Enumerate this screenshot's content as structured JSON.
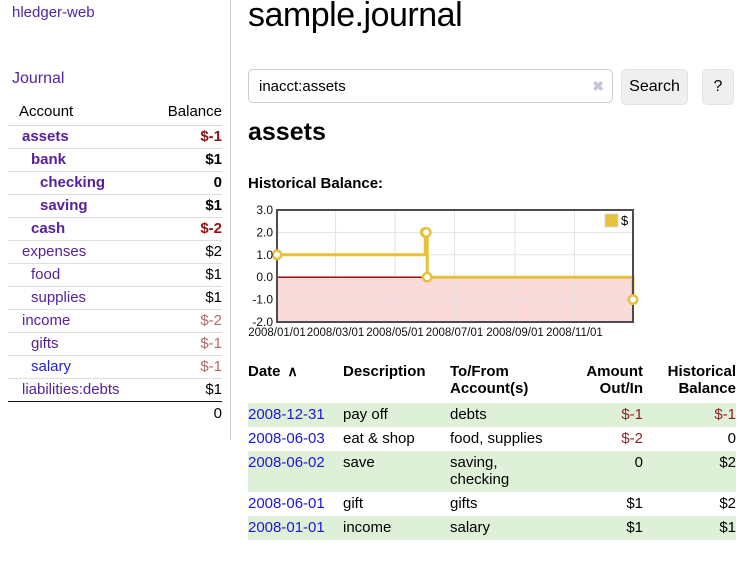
{
  "app": {
    "brand": "hledger-web",
    "nav_journal": "Journal"
  },
  "colors": {
    "accent_purple": "#56219b",
    "link_blue": "#2222dd",
    "date_link_blue": "#1b16dd",
    "negative_strong": "#8e1414",
    "negative_soft": "#b36a6a",
    "row_green": "#dff0d8",
    "chart_gold": "#e8c13c"
  },
  "sidebar": {
    "headers": {
      "account": "Account",
      "balance": "Balance"
    },
    "accounts": [
      {
        "account": "assets",
        "balance": "$-1",
        "level": 1,
        "bold": true,
        "tone": "neg-strong",
        "link": "purple"
      },
      {
        "account": "bank",
        "balance": "$1",
        "level": 2,
        "bold": true,
        "tone": "pos",
        "link": "purple"
      },
      {
        "account": "checking",
        "balance": "0",
        "level": 3,
        "bold": true,
        "tone": "pos",
        "link": "purple"
      },
      {
        "account": "saving",
        "balance": "$1",
        "level": 3,
        "bold": true,
        "tone": "pos",
        "link": "purple"
      },
      {
        "account": "cash",
        "balance": "$-2",
        "level": 2,
        "bold": true,
        "tone": "neg-strong",
        "link": "purple"
      },
      {
        "account": "expenses",
        "balance": "$2",
        "level": 1,
        "bold": false,
        "tone": "pos",
        "link": "purple"
      },
      {
        "account": "food",
        "balance": "$1",
        "level": 2,
        "bold": false,
        "tone": "pos",
        "link": "purple"
      },
      {
        "account": "supplies",
        "balance": "$1",
        "level": 2,
        "bold": false,
        "tone": "pos",
        "link": "purple"
      },
      {
        "account": "income",
        "balance": "$-2",
        "level": 1,
        "bold": false,
        "tone": "neg-soft",
        "link": "purple"
      },
      {
        "account": "gifts",
        "balance": "$-1",
        "level": 2,
        "bold": false,
        "tone": "neg-soft",
        "link": "purple"
      },
      {
        "account": "salary",
        "balance": "$-1",
        "level": 2,
        "bold": false,
        "tone": "neg-soft",
        "link": "blue"
      },
      {
        "account": "liabilities:debts",
        "balance": "$1",
        "level": 1,
        "bold": false,
        "tone": "pos",
        "link": "purple",
        "last": true
      }
    ],
    "total": "0"
  },
  "header": {
    "title": "sample.journal"
  },
  "search": {
    "value": "inacct:assets",
    "clear_icon": "✖",
    "button_label": "Search",
    "help_label": "?"
  },
  "main": {
    "heading": "assets",
    "chart_section_label": "Historical Balance:"
  },
  "chart_data": {
    "type": "line",
    "step": true,
    "title": "Historical Balance:",
    "legend_label": "$",
    "legend_position": "top-right",
    "grid": true,
    "x_range": [
      "2008/01/01",
      "2008/12/31"
    ],
    "ylim": [
      -2,
      3
    ],
    "y_ticks": [
      3.0,
      2.0,
      1.0,
      0.0,
      -1.0,
      -2.0
    ],
    "x_ticks": [
      "2008/01/01",
      "2008/03/01",
      "2008/05/01",
      "2008/07/01",
      "2008/09/01",
      "2008/11/01"
    ],
    "series": [
      {
        "name": "$",
        "color": "#e8c13c",
        "points": [
          {
            "x": "2008/01/01",
            "y": 1
          },
          {
            "x": "2008/06/01",
            "y": 2
          },
          {
            "x": "2008/06/02",
            "y": 2
          },
          {
            "x": "2008/06/03",
            "y": 0
          },
          {
            "x": "2008/12/31",
            "y": -1
          }
        ]
      }
    ],
    "negative_fill": "#fbdada",
    "zero_line_color": "#8b0000",
    "grid_color": "#e3e3e3",
    "border_color": "#4d4d4d"
  },
  "register": {
    "headers": {
      "date": "Date",
      "description": "Description",
      "accounts": "To/From\nAccount(s)",
      "amount": "Amount\nOut/In",
      "balance": "Historical\nBalance"
    },
    "sort_icon": "∧",
    "rows": [
      {
        "date": "2008-12-31",
        "description": "pay off",
        "accounts": "debts",
        "amount": "$-1",
        "balance": "$-1"
      },
      {
        "date": "2008-06-03",
        "description": "eat & shop",
        "accounts": "food, supplies",
        "amount": "$-2",
        "balance": "0"
      },
      {
        "date": "2008-06-02",
        "description": "save",
        "accounts": "saving,\nchecking",
        "amount": "0",
        "balance": "$2"
      },
      {
        "date": "2008-06-01",
        "description": "gift",
        "accounts": "gifts",
        "amount": "$1",
        "balance": "$2"
      },
      {
        "date": "2008-01-01",
        "description": "income",
        "accounts": "salary",
        "amount": "$1",
        "balance": "$1"
      }
    ]
  }
}
